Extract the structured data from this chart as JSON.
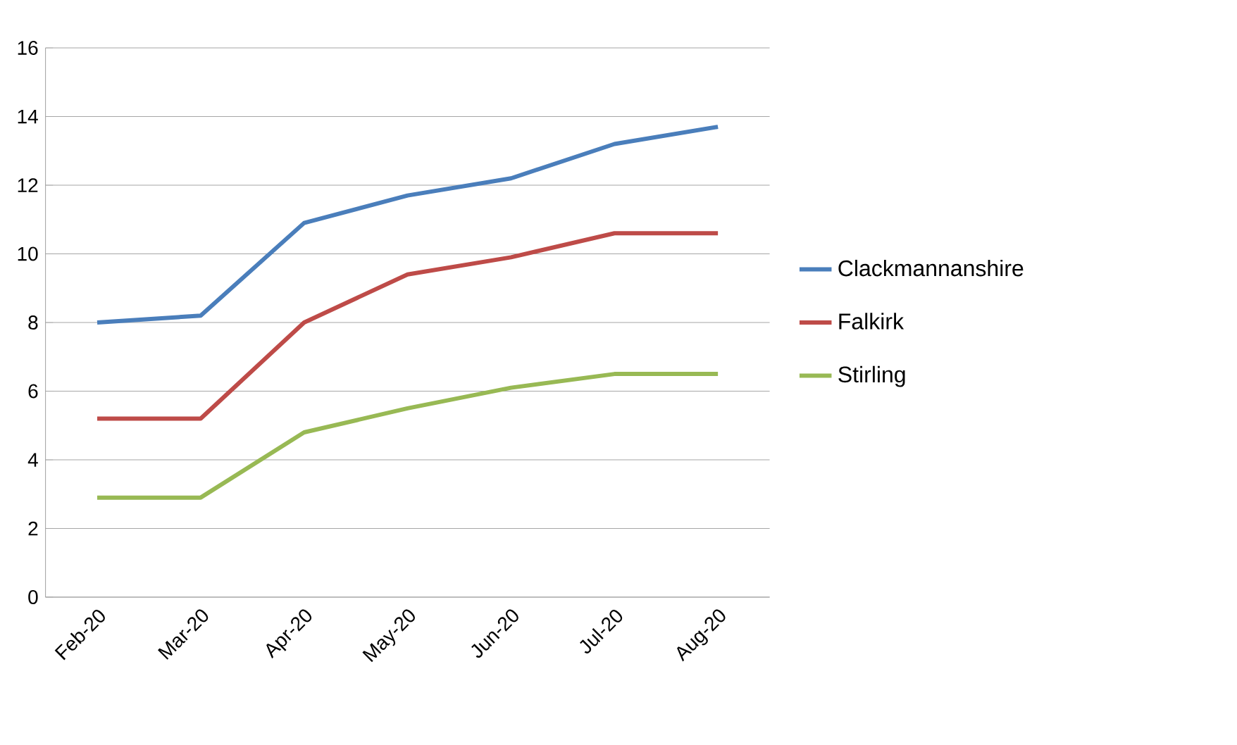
{
  "chart_data": {
    "type": "line",
    "categories": [
      "Feb-20",
      "Mar-20",
      "Apr-20",
      "May-20",
      "Jun-20",
      "Jul-20",
      "Aug-20"
    ],
    "series": [
      {
        "name": "Clackmannanshire",
        "color": "#4a7ebb",
        "values": [
          8.0,
          8.2,
          10.9,
          11.7,
          12.2,
          13.2,
          13.7
        ]
      },
      {
        "name": "Falkirk",
        "color": "#be4b48",
        "values": [
          5.2,
          5.2,
          8.0,
          9.4,
          9.9,
          10.6,
          10.6
        ]
      },
      {
        "name": "Stirling",
        "color": "#98b954",
        "values": [
          2.9,
          2.9,
          4.8,
          5.5,
          6.1,
          6.5,
          6.5
        ]
      }
    ],
    "ylim": [
      0,
      16
    ],
    "yticks": [
      0,
      2,
      4,
      6,
      8,
      10,
      12,
      14,
      16
    ],
    "grid": "y",
    "legend": "right",
    "marker": "none",
    "line_style": "solid"
  }
}
